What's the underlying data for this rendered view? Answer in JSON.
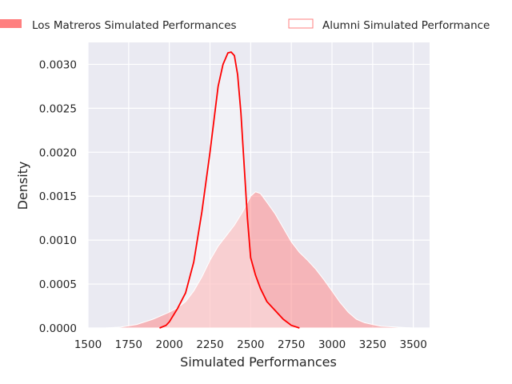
{
  "chart_data": {
    "type": "area",
    "xlabel": "Simulated Performances",
    "ylabel": "Density",
    "xlim": [
      1500,
      3600
    ],
    "ylim": [
      0,
      0.00325
    ],
    "x_ticks": [
      1500,
      1750,
      2000,
      2250,
      2500,
      2750,
      3000,
      3250,
      3500
    ],
    "x_tick_labels": [
      "1500",
      "1750",
      "2000",
      "2250",
      "2500",
      "2750",
      "3000",
      "3250",
      "3500"
    ],
    "y_ticks": [
      0,
      0.0005,
      0.001,
      0.0015,
      0.002,
      0.0025,
      0.003
    ],
    "y_tick_labels": [
      "0.0000",
      "0.0005",
      "0.0010",
      "0.0015",
      "0.0020",
      "0.0025",
      "0.0030"
    ],
    "grid": true,
    "legend_position": "top",
    "series": [
      {
        "name": "Los Matreros Simulated Performances",
        "style": "filled",
        "color": "#ff7f7f",
        "x": [
          1600,
          1700,
          1800,
          1900,
          2000,
          2050,
          2100,
          2150,
          2200,
          2250,
          2300,
          2350,
          2400,
          2450,
          2500,
          2530,
          2560,
          2600,
          2650,
          2700,
          2750,
          2800,
          2850,
          2900,
          2950,
          3000,
          3050,
          3100,
          3150,
          3200,
          3250,
          3300,
          3400,
          3500,
          3600
        ],
        "y": [
          0.0,
          1e-05,
          4e-05,
          0.0001,
          0.00018,
          0.00023,
          0.0003,
          0.00042,
          0.00058,
          0.00077,
          0.00093,
          0.00105,
          0.00117,
          0.00132,
          0.0015,
          0.00155,
          0.00153,
          0.00143,
          0.0013,
          0.00114,
          0.00098,
          0.00086,
          0.00077,
          0.00067,
          0.00055,
          0.00042,
          0.00029,
          0.00018,
          0.0001,
          6e-05,
          4e-05,
          2e-05,
          1e-05,
          0.0,
          0.0
        ]
      },
      {
        "name": "Alumni Simulated Performance",
        "style": "line",
        "color": "#ff0000",
        "x": [
          1940,
          1980,
          2000,
          2050,
          2100,
          2150,
          2200,
          2250,
          2300,
          2330,
          2360,
          2380,
          2400,
          2420,
          2440,
          2460,
          2480,
          2500,
          2530,
          2560,
          2600,
          2650,
          2700,
          2750,
          2800
        ],
        "y": [
          0.0,
          3e-05,
          7e-05,
          0.00022,
          0.0004,
          0.00075,
          0.00132,
          0.002,
          0.00275,
          0.003,
          0.00313,
          0.00314,
          0.0031,
          0.00288,
          0.00245,
          0.00185,
          0.00125,
          0.0008,
          0.0006,
          0.00045,
          0.0003,
          0.0002,
          0.0001,
          3e-05,
          0.0
        ]
      }
    ]
  }
}
